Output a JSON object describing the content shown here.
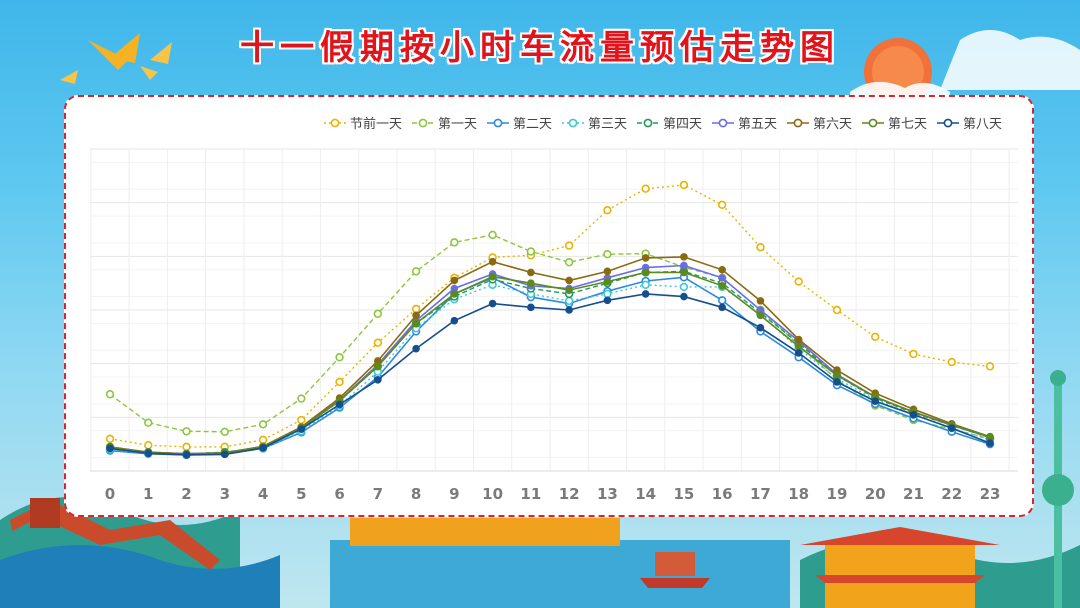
{
  "title": "十一假期按小时车流量预估走势图",
  "chart_data": {
    "type": "line",
    "title": "十一假期按小时车流量预估走势图",
    "xlabel": "",
    "ylabel": "",
    "categories": [
      "0",
      "1",
      "2",
      "3",
      "4",
      "5",
      "6",
      "7",
      "8",
      "9",
      "10",
      "11",
      "12",
      "13",
      "14",
      "15",
      "16",
      "17",
      "18",
      "19",
      "20",
      "21",
      "22",
      "23"
    ],
    "ylim": [
      0,
      6
    ],
    "grid": true,
    "y_tick_labels_visible": false,
    "legend_position": "top-right",
    "series": [
      {
        "name": "节前一天",
        "color": "#e8b400",
        "style": "dotted",
        "values": [
          0.6,
          0.48,
          0.45,
          0.45,
          0.58,
          0.95,
          1.66,
          2.39,
          3.02,
          3.6,
          3.98,
          4.02,
          4.2,
          4.86,
          5.26,
          5.33,
          4.96,
          4.17,
          3.53,
          3.0,
          2.5,
          2.18,
          2.03,
          1.95
        ]
      },
      {
        "name": "第一天",
        "color": "#8cc63f",
        "style": "dashed",
        "values": [
          1.43,
          0.9,
          0.74,
          0.73,
          0.87,
          1.35,
          2.12,
          2.93,
          3.72,
          4.26,
          4.4,
          4.09,
          3.89,
          4.04,
          4.05,
          3.8,
          3.6,
          3.0,
          2.35,
          1.7,
          1.22,
          0.95,
          0.78,
          0.6
        ]
      },
      {
        "name": "第二天",
        "color": "#2b8ae0",
        "style": "solid",
        "values": [
          0.38,
          0.32,
          0.3,
          0.32,
          0.42,
          0.72,
          1.18,
          1.75,
          2.6,
          3.3,
          3.6,
          3.24,
          3.12,
          3.35,
          3.54,
          3.61,
          3.18,
          2.6,
          2.12,
          1.6,
          1.25,
          0.98,
          0.73,
          0.5
        ]
      },
      {
        "name": "第三天",
        "color": "#3cc7d6",
        "style": "dotted",
        "values": [
          0.4,
          0.33,
          0.31,
          0.33,
          0.42,
          0.74,
          1.22,
          1.85,
          2.66,
          3.2,
          3.47,
          3.3,
          3.17,
          3.3,
          3.47,
          3.43,
          3.43,
          2.92,
          2.28,
          1.72,
          1.33,
          1.05,
          0.8,
          0.58
        ]
      },
      {
        "name": "第四天",
        "color": "#1f9a58",
        "style": "dashed",
        "values": [
          0.45,
          0.35,
          0.32,
          0.35,
          0.45,
          0.8,
          1.3,
          1.95,
          2.75,
          3.25,
          3.57,
          3.4,
          3.3,
          3.5,
          3.7,
          3.72,
          3.5,
          2.95,
          2.38,
          1.78,
          1.36,
          1.08,
          0.85,
          0.62
        ]
      },
      {
        "name": "第五天",
        "color": "#6a6ee6",
        "style": "solid",
        "values": [
          0.44,
          0.35,
          0.32,
          0.34,
          0.45,
          0.8,
          1.32,
          1.98,
          2.8,
          3.4,
          3.67,
          3.45,
          3.4,
          3.6,
          3.79,
          3.83,
          3.6,
          3.0,
          2.42,
          1.8,
          1.38,
          1.1,
          0.85,
          0.63
        ]
      },
      {
        "name": "第六天",
        "color": "#8a6a10",
        "style": "solid",
        "values": [
          0.45,
          0.35,
          0.32,
          0.34,
          0.46,
          0.82,
          1.36,
          2.05,
          2.9,
          3.55,
          3.9,
          3.7,
          3.55,
          3.72,
          3.97,
          3.99,
          3.75,
          3.17,
          2.45,
          1.88,
          1.45,
          1.15,
          0.88,
          0.64
        ]
      },
      {
        "name": "第七天",
        "color": "#5c8a1f",
        "style": "solid",
        "values": [
          0.44,
          0.34,
          0.31,
          0.34,
          0.45,
          0.8,
          1.31,
          1.95,
          2.75,
          3.3,
          3.62,
          3.5,
          3.37,
          3.53,
          3.7,
          3.7,
          3.45,
          2.9,
          2.32,
          1.78,
          1.38,
          1.1,
          0.86,
          0.64
        ]
      },
      {
        "name": "第八天",
        "color": "#164f8c",
        "style": "solid",
        "values": [
          0.42,
          0.33,
          0.3,
          0.31,
          0.43,
          0.78,
          1.24,
          1.7,
          2.28,
          2.8,
          3.12,
          3.05,
          3.0,
          3.18,
          3.3,
          3.25,
          3.05,
          2.67,
          2.2,
          1.66,
          1.3,
          1.05,
          0.8,
          0.52
        ]
      }
    ]
  }
}
